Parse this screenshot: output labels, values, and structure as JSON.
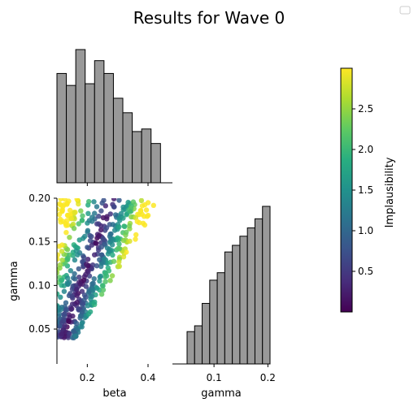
{
  "chart_data": {
    "title": "Results for Wave 0",
    "type": "scatter",
    "panels": {
      "beta_hist": {
        "type": "histogram",
        "variable": "beta",
        "bin_edges": [
          0.1,
          0.131,
          0.162,
          0.193,
          0.224,
          0.255,
          0.286,
          0.317,
          0.348,
          0.379,
          0.41,
          0.441
        ],
        "counts": [
          12.8,
          11.4,
          15.6,
          11.6,
          14.3,
          12.8,
          9.9,
          8.2,
          6.0,
          6.3,
          4.6
        ]
      },
      "scatter": {
        "type": "scatter",
        "xlabel": "beta",
        "ylabel": "gamma",
        "xlim": [
          0.1,
          0.5
        ],
        "ylim": [
          0.01,
          0.2
        ],
        "xticks": [
          "0.2",
          "0.4"
        ],
        "xtick_values": [
          0.2,
          0.4
        ],
        "yticks": [
          "0.05",
          "0.10",
          "0.15",
          "0.20"
        ],
        "ytick_values": [
          0.05,
          0.1,
          0.15,
          0.2
        ],
        "color_variable": "Implausibility",
        "n_points": 500
      },
      "gamma_hist": {
        "type": "histogram",
        "variable": "gamma",
        "xlabel": "gamma",
        "xticks": [
          "0.1",
          "0.2"
        ],
        "xtick_values": [
          0.1,
          0.2
        ],
        "bin_edges": [
          0.05,
          0.064,
          0.078,
          0.092,
          0.106,
          0.12,
          0.134,
          0.148,
          0.162,
          0.176,
          0.19,
          0.204
        ],
        "counts": [
          3.9,
          4.6,
          7.3,
          10.1,
          11.0,
          13.5,
          14.3,
          15.4,
          16.4,
          17.5,
          19.0
        ]
      }
    },
    "colorbar": {
      "label": "Implausibility",
      "ticks": [
        "0.5",
        "1.0",
        "1.5",
        "2.0",
        "2.5"
      ],
      "tick_values": [
        0.5,
        1.0,
        1.5,
        2.0,
        2.5
      ],
      "range": [
        0.0,
        3.0
      ],
      "colormap": "viridis"
    },
    "legend": {
      "placement": "top-right",
      "entries": []
    },
    "colors": {
      "bar_fill": "#999999",
      "bar_edge": "#000000"
    }
  }
}
